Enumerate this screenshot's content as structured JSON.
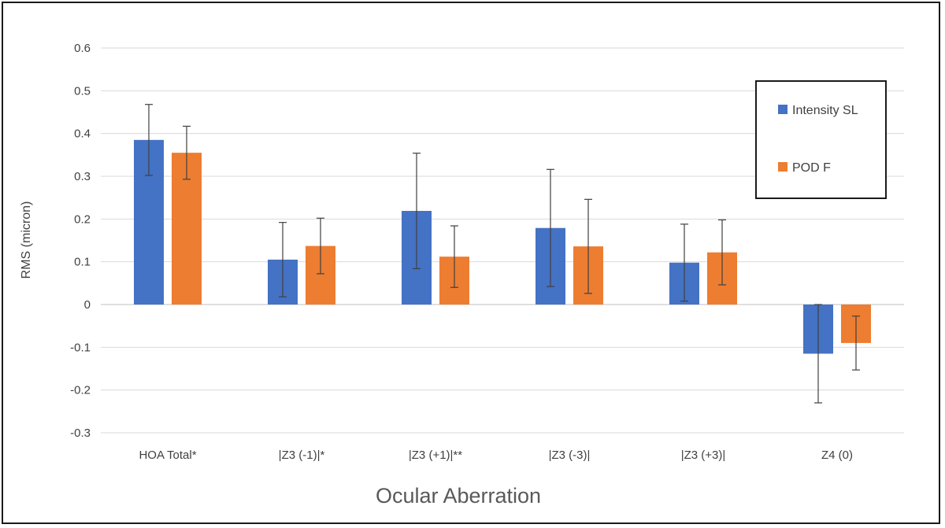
{
  "chart_data": {
    "type": "bar",
    "xlabel": "Ocular Aberration",
    "ylabel": "RMS (micron)",
    "ylim": [
      -0.3,
      0.6
    ],
    "ytick_step": 0.1,
    "ytick_labels": [
      "0.6",
      "0.5",
      "0.4",
      "0.3",
      "0.2",
      "0.1",
      "0",
      "-0.1",
      "-0.2",
      "-0.3"
    ],
    "grid": true,
    "legend_position": "top-right",
    "categories": [
      "HOA Total*",
      "|Z3 (-1)|*",
      "|Z3 (+1)|**",
      "|Z3 (-3)|",
      "|Z3 (+3)|",
      "Z4 (0)"
    ],
    "series": [
      {
        "name": "Intensity SL",
        "color": "#4472c4",
        "values": [
          0.385,
          0.105,
          0.219,
          0.179,
          0.098,
          -0.115
        ],
        "error": [
          0.083,
          0.087,
          0.135,
          0.137,
          0.09,
          0.115
        ]
      },
      {
        "name": "POD F",
        "color": "#ed7d31",
        "values": [
          0.355,
          0.137,
          0.112,
          0.136,
          0.122,
          -0.09
        ],
        "error": [
          0.062,
          0.065,
          0.072,
          0.11,
          0.076,
          0.063
        ]
      }
    ]
  }
}
